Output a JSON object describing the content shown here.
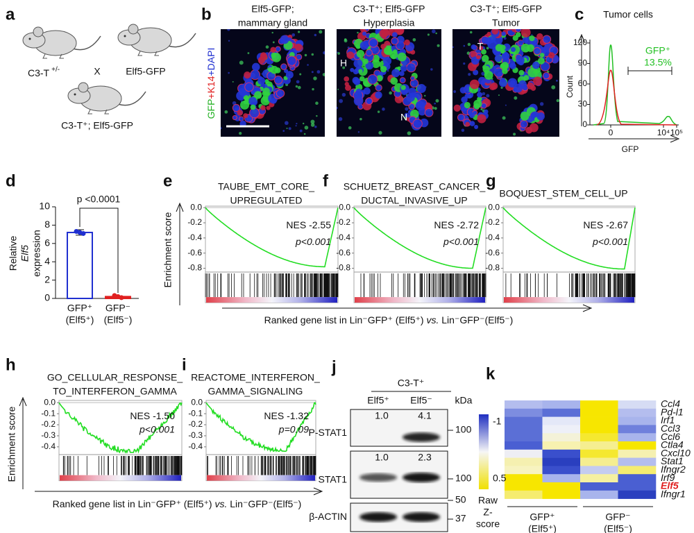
{
  "panels": {
    "a": {
      "label": "a",
      "parent1": {
        "text": "C3-T",
        "sup": "+/-"
      },
      "cross": "X",
      "parent2": "Elf5-GFP",
      "offspring": "C3-T⁺; Elf5-GFP"
    },
    "b": {
      "label": "b",
      "titles": [
        [
          "Elf5-GFP;",
          "mammary gland"
        ],
        [
          "C3-T⁺; Elf5-GFP",
          "Hyperplasia"
        ],
        [
          "C3-T⁺; Elf5-GFP",
          "Tumor"
        ]
      ],
      "stain": [
        {
          "text": "GFP",
          "color": "#22b022"
        },
        {
          "text": "+K14",
          "color": "#e02020"
        },
        {
          "text": "+DAPI",
          "color": "#1f2fd0"
        }
      ],
      "markers": [
        "H",
        "N",
        "T"
      ]
    },
    "c": {
      "label": "c",
      "title": "Tumor cells",
      "ylabel": "Count",
      "xlabel": "GFP",
      "ylim": [
        0,
        125
      ],
      "yticks": [
        0,
        30,
        60,
        90,
        120
      ],
      "xticks": [
        0,
        {
          "value": 10000,
          "label": "10⁴"
        },
        {
          "value": 100000,
          "label": "10⁵"
        }
      ],
      "gate_label": "GFP⁺",
      "gate_value": "13.5%",
      "gate_color": "#22c022"
    },
    "d": {
      "label": "d",
      "ylabel": [
        "Relative",
        "Elf5",
        "expression"
      ],
      "ylim": [
        0,
        10
      ],
      "yticks": [
        0,
        2,
        4,
        6,
        8,
        10
      ],
      "categories": [
        [
          "GFP⁺",
          "(Elf5⁺)"
        ],
        [
          "GFP⁻",
          "(Elf5⁻)"
        ]
      ],
      "values": [
        7.2,
        0.2
      ],
      "errors": [
        0.3,
        0.05
      ],
      "colors": [
        "#1f2fd0",
        "#e02020"
      ],
      "pvalue": "p <0.0001"
    },
    "e": {
      "label": "e",
      "title": [
        "TAUBE_EMT_CORE_",
        "UPREGULATED"
      ],
      "nes": "NES -2.55",
      "p": "p<0.001",
      "ylim": [
        -0.85,
        0.02
      ],
      "yticks": [
        {
          "value": 0,
          "label": "0.0"
        },
        -0.2,
        -0.4,
        -0.6,
        -0.8
      ],
      "es_min": -0.78
    },
    "f": {
      "label": "f",
      "title": [
        "SCHUETZ_BREAST_CANCER_",
        "DUCTAL_INVASIVE_UP"
      ],
      "nes": "NES -2.72",
      "p": "p<0.001",
      "ylim": [
        -0.85,
        0.02
      ],
      "yticks": [
        {
          "value": 0,
          "label": "0.0"
        },
        -0.2,
        -0.4,
        -0.6,
        -0.8
      ],
      "es_min": -0.8
    },
    "g": {
      "label": "g",
      "title": [
        "BOQUEST_STEM_CELL_UP"
      ],
      "nes": "NES -2.67",
      "p": "p<0.001",
      "ylim": [
        -0.85,
        0.02
      ],
      "yticks": [
        {
          "value": 0,
          "label": "0.0"
        },
        -0.2,
        -0.4,
        -0.6,
        -0.8
      ],
      "es_min": -0.81
    },
    "efg_xlabel": [
      "Ranked gene list in Lin⁻GFP⁺ (Elf5⁺) ",
      "vs.",
      " Lin⁻GFP⁻(Elf5⁻)"
    ],
    "ylabel": "Enrichment score",
    "h": {
      "label": "h",
      "title": [
        "GO_CELLULAR_RESPONSE_",
        "TO_INTERFERON_GAMMA"
      ],
      "nes": "NES -1.50",
      "p": "p<0.001",
      "ylim": [
        -0.47,
        0.02
      ],
      "yticks": [
        {
          "value": 0,
          "label": "0.0"
        },
        -0.1,
        -0.2,
        -0.3,
        -0.4
      ],
      "es_min": -0.45
    },
    "i": {
      "label": "i",
      "title": [
        "REACTOME_INTERFERON_",
        "GAMMA_SIGNALING"
      ],
      "nes": "NES -1.32",
      "p": "p=0.09",
      "ylim": [
        -0.47,
        0.02
      ],
      "yticks": [
        {
          "value": 0,
          "label": "0.0"
        },
        -0.1,
        -0.2,
        -0.3,
        -0.4
      ],
      "es_min": -0.44
    },
    "hi_xlabel": [
      "Ranked gene list in Lin⁻GFP⁺ (Elf5⁺) ",
      "vs.",
      " Lin⁻GFP⁻(Elf5⁻)"
    ],
    "j": {
      "label": "j",
      "group": "C3-T⁺",
      "lanes": [
        "Elf5⁺",
        "Elf5⁻"
      ],
      "unit": "kDa",
      "blots": [
        {
          "name": "P-STAT1",
          "quant": [
            "1.0",
            "4.1"
          ],
          "markers": [
            100
          ]
        },
        {
          "name": "STAT1",
          "quant": [
            "1.0",
            "2.3"
          ],
          "markers": [
            100
          ]
        },
        {
          "name": "β-ACTIN",
          "markers": [
            50,
            37
          ]
        }
      ]
    },
    "k": {
      "label": "k",
      "genes": [
        "Ccl4",
        "Pd-l1",
        "Irf1",
        "Ccl3",
        "Ccl6",
        "Ctla4",
        "Cxcl10",
        "Stat1",
        "Ifngr2",
        "Irf9",
        "Elf5",
        "Ifngr1"
      ],
      "highlight": "Elf5",
      "highlight_color": "#e02020",
      "cells": [
        [
          "#b4bdee",
          "#a8b4ec",
          "#f7e600",
          "#d6dcf4"
        ],
        [
          "#7d8de0",
          "#5b6fd6",
          "#f7e600",
          "#b4bdee"
        ],
        [
          "#5b6fd6",
          "#e4e8f8",
          "#f7e600",
          "#a8b4ec"
        ],
        [
          "#5b6fd6",
          "#eef0f8",
          "#f7e600",
          "#6f80dc"
        ],
        [
          "#5b6fd6",
          "#f4f2d8",
          "#f5e830",
          "#a8b4ec"
        ],
        [
          "#4a5fd2",
          "#f7f1b0",
          "#f5ee90",
          "#f7e600"
        ],
        [
          "#eeeef4",
          "#3a4fcc",
          "#f5e830",
          "#f5f0b0"
        ],
        [
          "#f5f0b0",
          "#2a3fbf",
          "#f5ee90",
          "#b4bdee"
        ],
        [
          "#f7f3c0",
          "#3a4fcc",
          "#c4ccf0",
          "#f5ec70"
        ],
        [
          "#f7e600",
          "#a8b4ec",
          "#f5f0a0",
          "#4a5fd2"
        ],
        [
          "#f7e600",
          "#f7e600",
          "#4a5fd2",
          "#4a5fd2"
        ],
        [
          "#f5ec70",
          "#f7e600",
          "#a8b4ec",
          "#2a3fbf"
        ]
      ],
      "scale_top": -1,
      "scale_bottom": 0.5,
      "scale_title": [
        "Raw",
        "Z-",
        "score"
      ],
      "groups": [
        [
          "GFP⁺",
          "(Elf5⁺)"
        ],
        [
          "GFP⁻",
          "(Elf5⁻)"
        ]
      ]
    }
  }
}
